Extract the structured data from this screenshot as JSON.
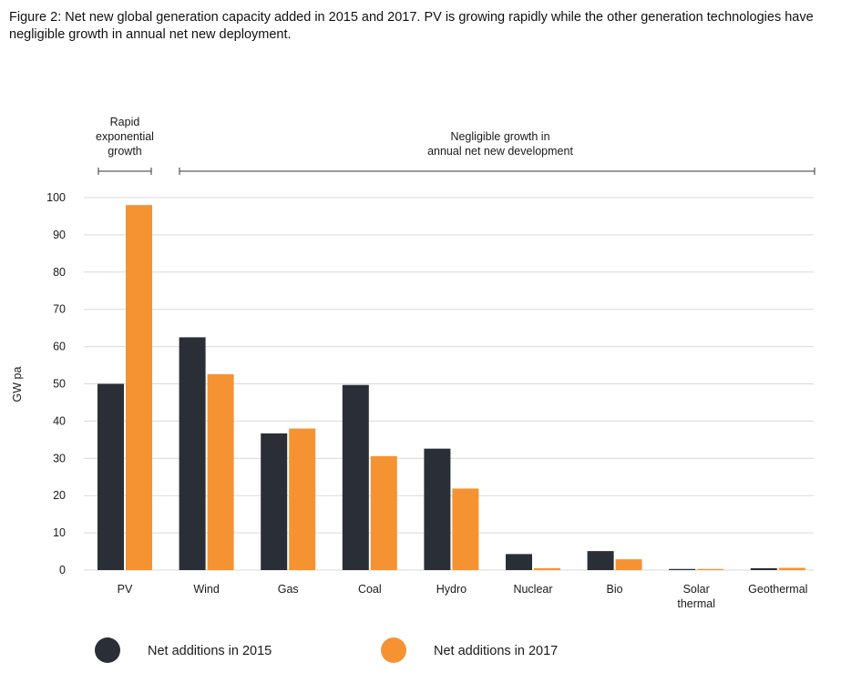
{
  "chart_data": {
    "type": "bar",
    "title": "Figure 2: Net new global generation capacity added in 2015 and 2017. PV is growing rapidly while the other generation technologies have negligible growth in annual net new deployment.",
    "ylabel": "GW pa",
    "xlabel": "",
    "ylim": [
      0,
      100
    ],
    "yticks": [
      0,
      10,
      20,
      30,
      40,
      50,
      60,
      70,
      80,
      90,
      100
    ],
    "grid": true,
    "categories": [
      [
        "PV"
      ],
      [
        "Wind"
      ],
      [
        "Gas"
      ],
      [
        "Coal"
      ],
      [
        "Hydro"
      ],
      [
        "Nuclear"
      ],
      [
        "Bio"
      ],
      [
        "Solar",
        "thermal"
      ],
      [
        "Geothermal"
      ]
    ],
    "series": [
      {
        "name": "Net additions in 2015",
        "color": "#2a2e36",
        "values": [
          50,
          62.5,
          36.7,
          49.7,
          32.6,
          4.3,
          5.1,
          0.3,
          0.5
        ]
      },
      {
        "name": "Net additions in 2017",
        "color": "#f59332",
        "values": [
          98,
          52.6,
          38,
          30.6,
          21.9,
          0.5,
          2.9,
          0.3,
          0.6
        ]
      }
    ],
    "annotations": [
      {
        "lines": [
          "Rapid",
          "exponential",
          "growth"
        ],
        "span_start_category": 0,
        "span_end_category": 0
      },
      {
        "lines": [
          "Negligible growth in",
          "annual net new development"
        ],
        "span_start_category": 1,
        "span_end_category": 8
      }
    ],
    "legend_position": "bottom"
  }
}
